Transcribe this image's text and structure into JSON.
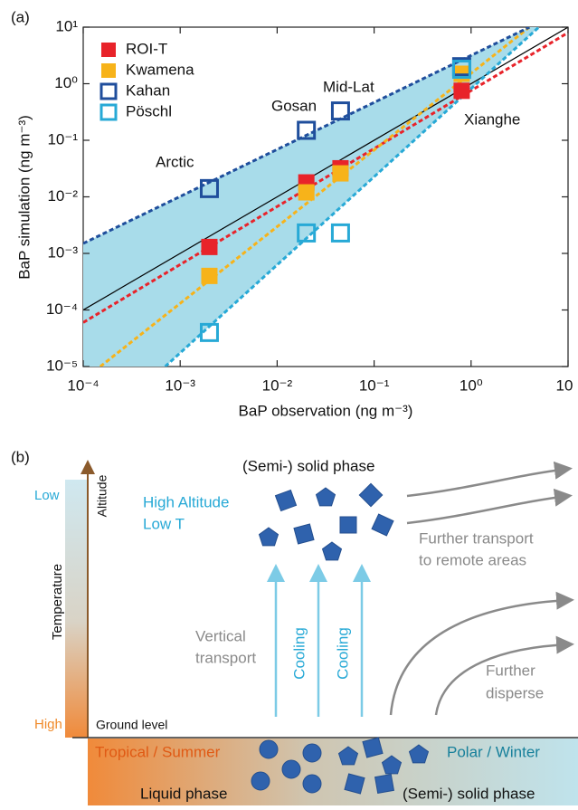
{
  "panel_a_label": "(a)",
  "chart_data": {
    "type": "scatter",
    "log_x": true,
    "log_y": true,
    "xlabel": "BaP observation (ng m⁻³)",
    "ylabel": "BaP simulation (ng m⁻³)",
    "xlim": [
      0.0001,
      10
    ],
    "ylim": [
      1e-05,
      10
    ],
    "xticks": [
      {
        "value": 0.0001,
        "label": "10⁻⁴"
      },
      {
        "value": 0.001,
        "label": "10⁻³"
      },
      {
        "value": 0.01,
        "label": "10⁻²"
      },
      {
        "value": 0.1,
        "label": "10⁻¹"
      },
      {
        "value": 1,
        "label": "10⁰"
      },
      10
    ],
    "yticks": [
      {
        "value": 1e-05,
        "label": "10⁻⁵"
      },
      {
        "value": 0.0001,
        "label": "10⁻⁴"
      },
      {
        "value": 0.001,
        "label": "10⁻³"
      },
      {
        "value": 0.01,
        "label": "10⁻²"
      },
      {
        "value": 0.1,
        "label": "10⁻¹"
      },
      {
        "value": 1,
        "label": "10⁰"
      },
      {
        "value": 10,
        "label": "10¹"
      }
    ],
    "x": [
      0.002,
      0.02,
      0.045,
      0.8
    ],
    "site_labels": [
      "Arctic",
      "Gosan",
      "Mid-Lat",
      "Xianghe"
    ],
    "legend": "top-left",
    "shade_color": "#a8dcea",
    "reference_line": {
      "x": [
        0.0001,
        10
      ],
      "y": [
        0.0001,
        10
      ],
      "color": "#000000"
    },
    "series": [
      {
        "name": "ROI-T",
        "color": "#e8232a",
        "filled": true,
        "values": [
          0.0013,
          0.018,
          0.032,
          0.75
        ],
        "fit_x": [
          0.0001,
          10
        ],
        "fit_y": [
          6e-05,
          8
        ]
      },
      {
        "name": "Kwamena",
        "color": "#f7b31a",
        "filled": true,
        "values": [
          0.0004,
          0.012,
          0.026,
          1.5
        ],
        "fit_x": [
          0.00015,
          4
        ],
        "fit_y": [
          1e-05,
          10
        ]
      },
      {
        "name": "Kahan",
        "color": "#1f4e9c",
        "filled": false,
        "values": [
          0.014,
          0.15,
          0.33,
          2.0
        ],
        "fit_x": [
          0.0001,
          4
        ],
        "fit_y": [
          0.0015,
          10
        ]
      },
      {
        "name": "Pöschl",
        "color": "#27a9d6",
        "filled": false,
        "values": [
          4e-05,
          0.0023,
          0.0023,
          1.8
        ],
        "fit_x": [
          0.0007,
          5
        ],
        "fit_y": [
          1e-05,
          10
        ]
      }
    ]
  },
  "diagram": {
    "panel_label": "(b)",
    "altitude": "Altitude",
    "temperature": "Temperature",
    "low": "Low",
    "high": "High",
    "ground_level": "Ground level",
    "top_phase": "(Semi-) solid phase",
    "high_altitude": [
      "High Altitude",
      "Low T"
    ],
    "further_transport": [
      "Further transport",
      "to remote areas"
    ],
    "vertical_transport": [
      "Vertical",
      "transport"
    ],
    "cooling": [
      "Cooling",
      "Cooling"
    ],
    "further_disperse": [
      "Further",
      "disperse"
    ],
    "tropical": "Tropical / Summer",
    "polar": "Polar / Winter",
    "liquid_phase": "Liquid phase",
    "bottom_phase": "(Semi-) solid phase"
  }
}
